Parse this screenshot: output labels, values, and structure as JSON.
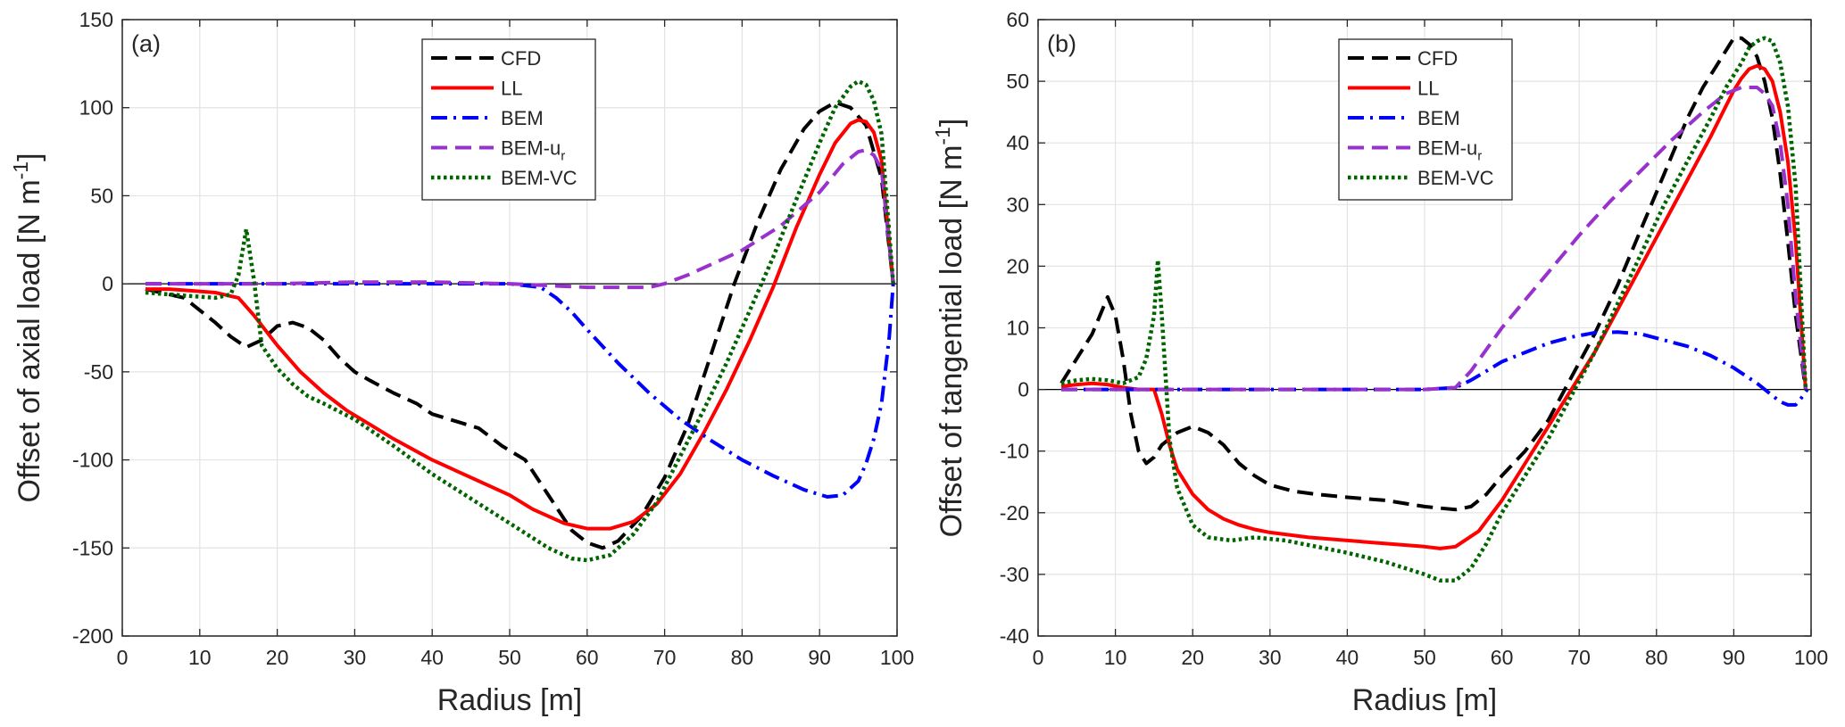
{
  "chart_data": [
    {
      "type": "line",
      "panel_label": "(a)",
      "xlabel": "Radius [m]",
      "ylabel": "Offset of axial load [N m^-1]",
      "ylabel_main": "Offset of axial load [N m",
      "ylabel_sup": "-1",
      "ylabel_close": "]",
      "xlim": [
        0,
        100
      ],
      "ylim": [
        -200,
        150
      ],
      "xticks": [
        0,
        10,
        20,
        30,
        40,
        50,
        60,
        70,
        80,
        90,
        100
      ],
      "yticks": [
        -200,
        -150,
        -100,
        -50,
        0,
        50,
        100,
        150
      ],
      "grid": true,
      "legend_position": "top-center",
      "zero_line": true,
      "series": [
        {
          "name": "CFD",
          "color": "#000000",
          "dash": "dashed",
          "x": [
            3,
            5,
            8,
            10,
            12,
            14,
            16,
            18,
            20,
            22,
            24,
            26,
            28,
            30,
            32,
            35,
            38,
            40,
            43,
            46,
            49,
            52,
            55,
            58,
            60,
            62,
            64,
            67,
            70,
            73,
            76,
            79,
            82,
            85,
            88,
            90,
            92,
            94,
            96,
            98,
            99.5
          ],
          "y": [
            -3,
            -5,
            -8,
            -15,
            -22,
            -30,
            -36,
            -32,
            -24,
            -22,
            -25,
            -32,
            -42,
            -50,
            -55,
            -62,
            -68,
            -74,
            -78,
            -82,
            -92,
            -100,
            -120,
            -140,
            -147,
            -150,
            -146,
            -132,
            -110,
            -80,
            -40,
            0,
            35,
            65,
            88,
            98,
            103,
            100,
            90,
            60,
            0
          ]
        },
        {
          "name": "LL",
          "color": "#ff0000",
          "dash": "solid",
          "x": [
            3,
            6,
            9,
            12,
            15,
            17,
            20,
            23,
            26,
            29,
            32,
            35,
            40,
            45,
            50,
            53,
            57,
            60,
            63,
            66,
            69,
            72,
            75,
            78,
            81,
            84,
            87,
            90,
            92,
            94,
            95,
            96,
            97,
            98,
            99.5
          ],
          "y": [
            -3,
            -3,
            -4,
            -5,
            -8,
            -18,
            -35,
            -50,
            -62,
            -72,
            -80,
            -88,
            -100,
            -110,
            -120,
            -128,
            -136,
            -139,
            -139,
            -135,
            -125,
            -108,
            -85,
            -60,
            -32,
            -2,
            32,
            62,
            80,
            91,
            93,
            92,
            86,
            70,
            0
          ]
        },
        {
          "name": "BEM",
          "color": "#0000ff",
          "dash": "dashdot",
          "x": [
            3,
            10,
            20,
            30,
            40,
            50,
            54,
            56,
            58,
            60,
            64,
            68,
            72,
            76,
            80,
            84,
            88,
            91,
            93,
            95,
            96,
            97,
            98,
            99,
            99.5
          ],
          "y": [
            0,
            0,
            0,
            0,
            0,
            0,
            -2,
            -8,
            -16,
            -26,
            -45,
            -62,
            -77,
            -89,
            -100,
            -109,
            -117,
            -121,
            -120,
            -112,
            -102,
            -88,
            -68,
            -30,
            0
          ]
        },
        {
          "name": "BEM-u_r",
          "color": "#9932cc",
          "dash": "dashed",
          "x": [
            3,
            10,
            20,
            30,
            40,
            50,
            55,
            60,
            65,
            68,
            70,
            73,
            76,
            80,
            85,
            90,
            93,
            95,
            96,
            97,
            98,
            99.5
          ],
          "y": [
            0,
            0,
            0,
            1,
            1,
            0,
            -1,
            -2,
            -2,
            -2,
            0,
            5,
            11,
            19,
            33,
            52,
            68,
            75,
            76,
            73,
            65,
            0
          ]
        },
        {
          "name": "BEM-VC",
          "color": "#006400",
          "dash": "dotted",
          "x": [
            3,
            6,
            9,
            12,
            14,
            15,
            16,
            17,
            18,
            20,
            22,
            24,
            26,
            30,
            35,
            40,
            45,
            50,
            55,
            58,
            60,
            63,
            66,
            69,
            72,
            75,
            78,
            81,
            84,
            87,
            90,
            92,
            94,
            95,
            96,
            97,
            98,
            99.5
          ],
          "y": [
            -5,
            -6,
            -7,
            -8,
            -6,
            5,
            31,
            2,
            -35,
            -48,
            -57,
            -64,
            -68,
            -77,
            -92,
            -108,
            -122,
            -136,
            -150,
            -156,
            -157,
            -154,
            -142,
            -124,
            -98,
            -72,
            -45,
            -15,
            15,
            48,
            80,
            100,
            112,
            115,
            113,
            104,
            85,
            0
          ]
        }
      ]
    },
    {
      "type": "line",
      "panel_label": "(b)",
      "xlabel": "Radius [m]",
      "ylabel": "Offset of tangential load [N m^-1]",
      "ylabel_main": "Offset of tangential load [N m",
      "ylabel_sup": "-1",
      "ylabel_close": "]",
      "xlim": [
        0,
        100
      ],
      "ylim": [
        -40,
        60
      ],
      "xticks": [
        0,
        10,
        20,
        30,
        40,
        50,
        60,
        70,
        80,
        90,
        100
      ],
      "yticks": [
        -40,
        -30,
        -20,
        -10,
        0,
        10,
        20,
        30,
        40,
        50,
        60
      ],
      "grid": true,
      "legend_position": "top-center",
      "zero_line": true,
      "series": [
        {
          "name": "CFD",
          "color": "#000000",
          "dash": "dashed",
          "x": [
            3,
            4,
            5,
            6,
            7,
            8,
            9,
            10,
            11,
            12,
            13,
            14,
            15,
            16,
            17,
            18,
            20,
            22,
            24,
            26,
            28,
            30,
            33,
            36,
            40,
            45,
            50,
            54,
            56,
            58,
            60,
            63,
            66,
            69,
            72,
            75,
            78,
            81,
            84,
            86,
            88,
            89,
            90,
            91,
            92,
            93,
            94,
            95,
            96,
            97,
            98,
            99.3
          ],
          "y": [
            1,
            3,
            5,
            7,
            9,
            12,
            15,
            12,
            5,
            -4,
            -10,
            -12,
            -11,
            -9,
            -8,
            -7,
            -6,
            -7,
            -9,
            -12,
            -14,
            -15.5,
            -16.5,
            -17,
            -17.5,
            -18,
            -19,
            -19.5,
            -19,
            -17,
            -14,
            -10,
            -5,
            2,
            9,
            17,
            26,
            35,
            44,
            49,
            53,
            55,
            57,
            57,
            56,
            54,
            50,
            44,
            35,
            24,
            12,
            0
          ]
        },
        {
          "name": "LL",
          "color": "#ff0000",
          "dash": "solid",
          "x": [
            3,
            5,
            7,
            9,
            11,
            13,
            15,
            16,
            17,
            18,
            20,
            22,
            24,
            26,
            28,
            30,
            35,
            40,
            45,
            50,
            52,
            54,
            57,
            60,
            63,
            66,
            69,
            72,
            75,
            78,
            81,
            84,
            87,
            89,
            90,
            91,
            92,
            93,
            94,
            95,
            96,
            97,
            98,
            99.3
          ],
          "y": [
            0.5,
            0.8,
            1,
            0.8,
            0.3,
            0,
            0,
            -4,
            -9,
            -13,
            -17,
            -19.5,
            -21,
            -22,
            -22.7,
            -23.2,
            -24,
            -24.5,
            -25,
            -25.5,
            -25.8,
            -25.5,
            -23,
            -18,
            -12,
            -6,
            0,
            6,
            13,
            20,
            27,
            34,
            41,
            46,
            48.5,
            50.5,
            52,
            52.5,
            52,
            50,
            45,
            37,
            24,
            0
          ]
        },
        {
          "name": "BEM",
          "color": "#0000ff",
          "dash": "dashdot",
          "x": [
            3,
            10,
            20,
            30,
            40,
            50,
            54,
            56,
            58,
            60,
            63,
            66,
            69,
            72,
            75,
            78,
            81,
            84,
            87,
            90,
            93,
            95,
            96,
            97,
            98,
            99,
            99.5
          ],
          "y": [
            0,
            0,
            0,
            0,
            0,
            0,
            0.3,
            1.5,
            3,
            4.5,
            6,
            7.5,
            8.5,
            9.2,
            9.3,
            9,
            8,
            7,
            5.5,
            3.5,
            1,
            -1,
            -2,
            -2.5,
            -2.5,
            -1,
            0
          ]
        },
        {
          "name": "BEM-u_r",
          "color": "#9932cc",
          "dash": "dashed",
          "x": [
            3,
            10,
            20,
            30,
            40,
            50,
            54,
            56,
            58,
            60,
            63,
            66,
            70,
            74,
            78,
            82,
            86,
            89,
            91,
            93,
            94,
            95,
            96,
            97,
            98,
            99.3
          ],
          "y": [
            0,
            0,
            0,
            0,
            0,
            0,
            0.3,
            3,
            6.5,
            10,
            14.5,
            19,
            25,
            30.5,
            35.5,
            40.5,
            45,
            48,
            49,
            49,
            48,
            46,
            40,
            30,
            15,
            0
          ]
        },
        {
          "name": "BEM-VC",
          "color": "#006400",
          "dash": "dotted",
          "x": [
            3,
            5,
            7,
            9,
            11,
            13,
            14,
            15,
            15.5,
            16,
            16.5,
            17,
            18,
            20,
            22,
            25,
            28,
            32,
            36,
            40,
            45,
            50,
            52,
            54,
            56,
            58,
            60,
            63,
            66,
            69,
            72,
            75,
            78,
            81,
            84,
            87,
            89,
            91,
            92,
            93,
            94,
            95,
            96,
            97,
            98,
            99.3
          ],
          "y": [
            1,
            1.5,
            1.7,
            1.5,
            1,
            2,
            5,
            12,
            21,
            12,
            2,
            -8,
            -16,
            -22,
            -24,
            -24.5,
            -24,
            -24.5,
            -25.5,
            -26.5,
            -28,
            -30,
            -31,
            -31,
            -29,
            -25,
            -20,
            -14,
            -8,
            -1,
            6,
            14,
            22,
            30,
            37,
            44,
            49,
            53,
            55.5,
            56.5,
            57,
            56.5,
            53,
            46,
            33,
            0
          ]
        }
      ]
    }
  ]
}
